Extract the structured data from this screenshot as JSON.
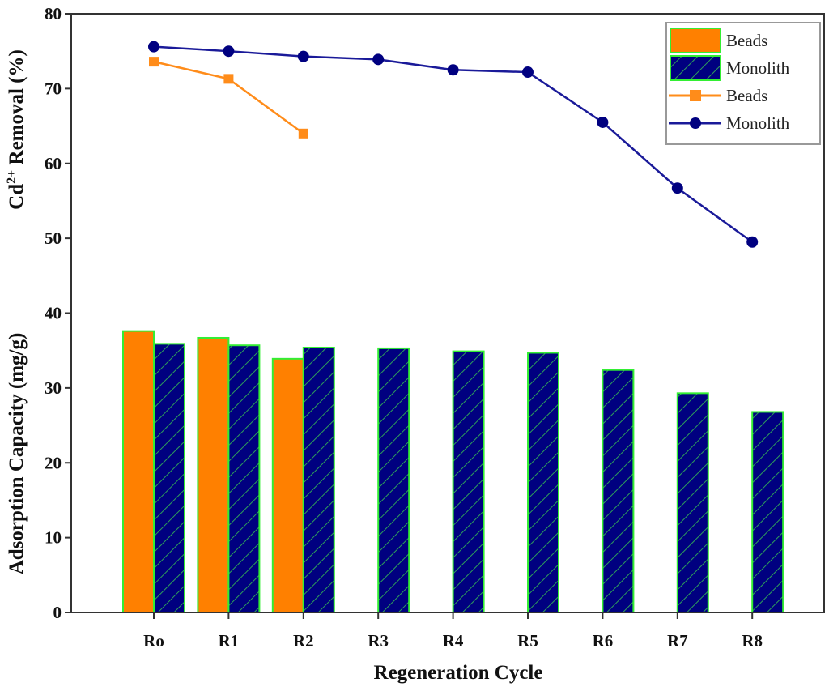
{
  "chart_data": {
    "type": "bar+line",
    "title": "",
    "xlabel": "Regeneration Cycle",
    "ylabel_lower": "Adsorption Capacity (mg/g)",
    "ylabel_upper": "Cd2+ Removal (%)",
    "ylabel_upper_parts": {
      "base": "Cd",
      "sup": "2+",
      "rest": " Removal (%)"
    },
    "ylim": [
      0,
      80
    ],
    "yticks": [
      0,
      10,
      20,
      30,
      40,
      50,
      60,
      70,
      80
    ],
    "categories": [
      "Ro",
      "R1",
      "R2",
      "R3",
      "R4",
      "R5",
      "R6",
      "R7",
      "R8"
    ],
    "grid": false,
    "legend_placement": "top-right",
    "bar_series": [
      {
        "name": "Beads",
        "color": "#ff8000",
        "edge": "#33ee33",
        "values": [
          37.6,
          36.7,
          33.9,
          null,
          null,
          null,
          null,
          null,
          null
        ]
      },
      {
        "name": "Monolith",
        "color": "#000080",
        "edge": "#33ee33",
        "hatch": "diagonal",
        "values": [
          35.9,
          35.7,
          35.4,
          35.3,
          34.9,
          34.7,
          32.4,
          29.3,
          26.8
        ]
      }
    ],
    "line_series": [
      {
        "name": "Beads",
        "color": "#ff8c1a",
        "marker": "square",
        "values": [
          73.6,
          71.3,
          64.0,
          null,
          null,
          null,
          null,
          null,
          null
        ]
      },
      {
        "name": "Monolith",
        "color": "#1a1a99",
        "marker": "circle",
        "values": [
          75.6,
          75.0,
          74.3,
          73.9,
          72.5,
          72.2,
          65.5,
          56.7,
          49.5
        ]
      }
    ]
  }
}
